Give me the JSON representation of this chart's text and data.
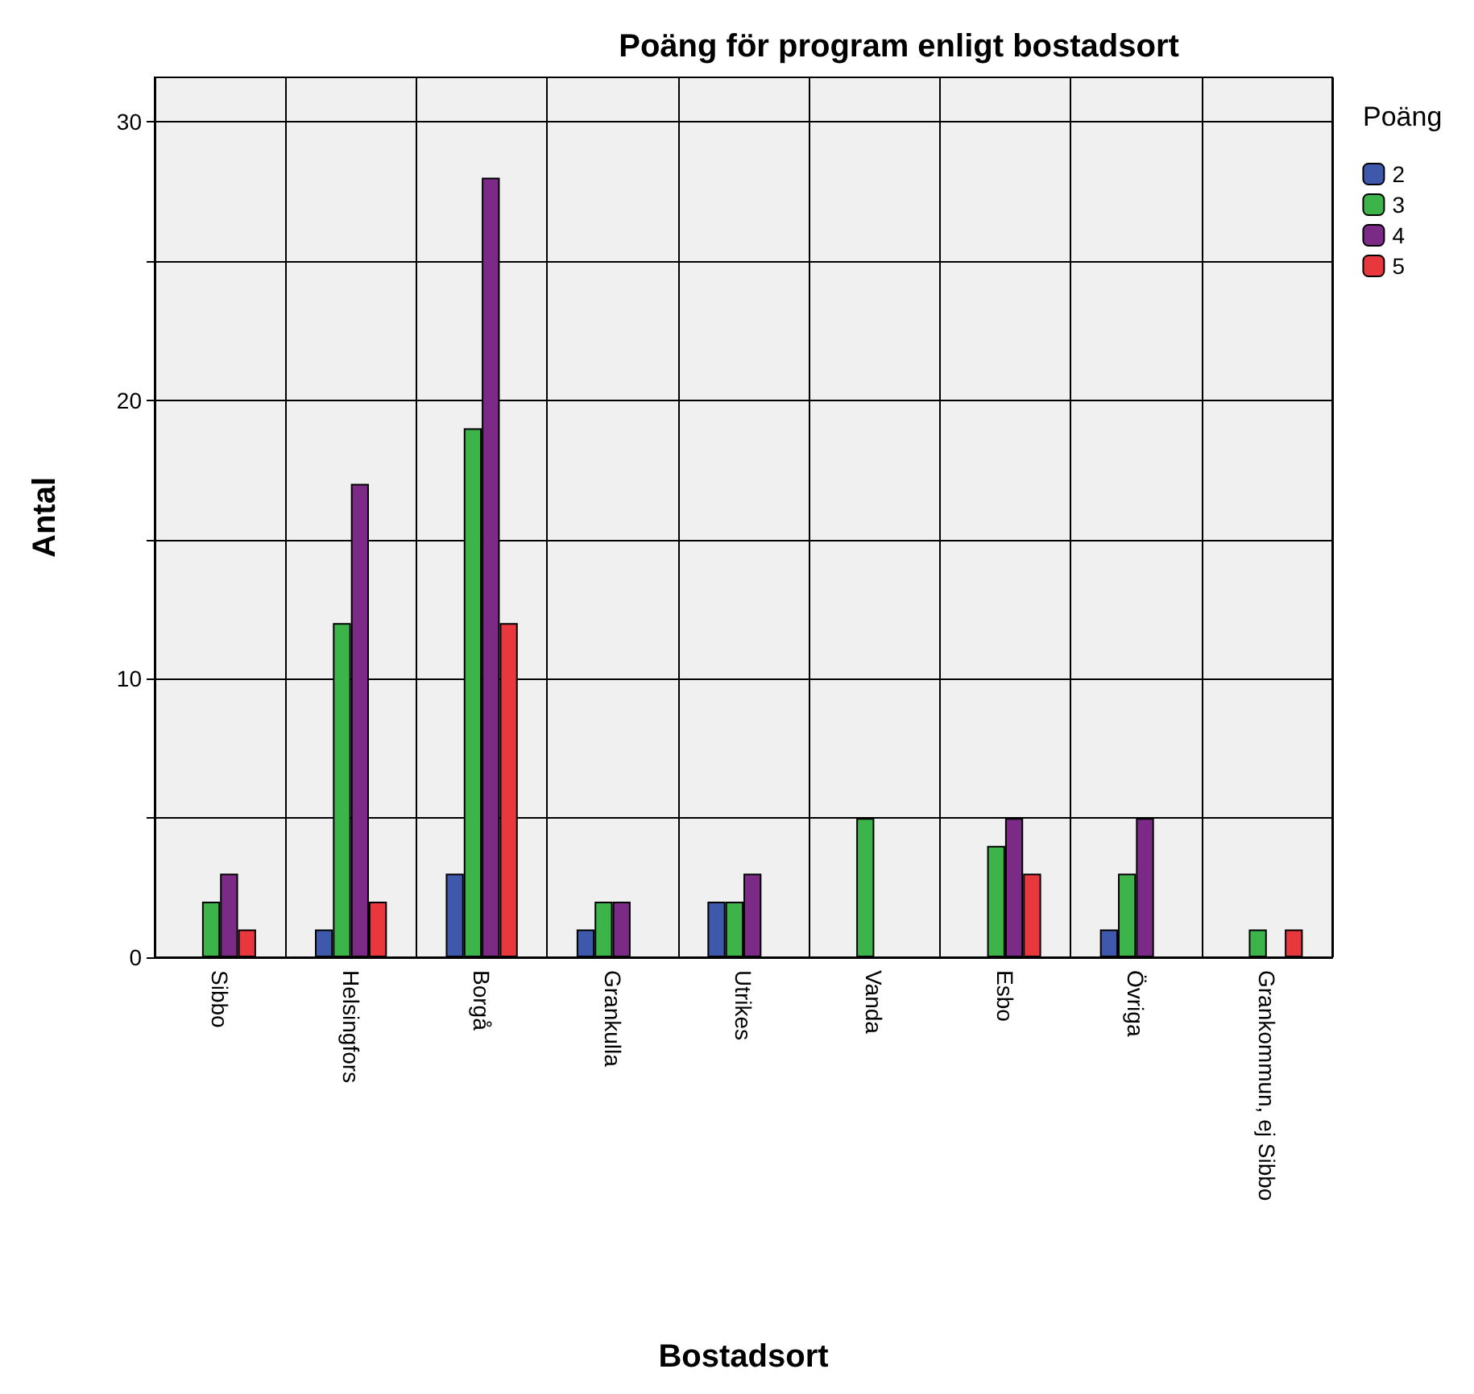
{
  "chart_data": {
    "type": "bar",
    "title": "Poäng för program enligt bostadsort",
    "xlabel": "Bostadsort",
    "ylabel": "Antal",
    "legend_title": "Poäng",
    "categories": [
      "Sibbo",
      "Helsingfors",
      "Borgå",
      "Grankulla",
      "Utrikes",
      "Vanda",
      "Esbo",
      "Övriga",
      "Grankommun, ej Sibbo"
    ],
    "series": [
      {
        "name": "2",
        "color": "#3e58ac",
        "values": [
          null,
          1,
          3,
          1,
          2,
          null,
          null,
          1,
          null
        ]
      },
      {
        "name": "3",
        "color": "#3cb44a",
        "values": [
          2,
          12,
          19,
          2,
          2,
          5,
          4,
          3,
          1
        ]
      },
      {
        "name": "4",
        "color": "#7b2a85",
        "values": [
          3,
          17,
          28,
          2,
          3,
          null,
          5,
          5,
          null
        ]
      },
      {
        "name": "5",
        "color": "#e8383d",
        "values": [
          1,
          2,
          12,
          null,
          null,
          null,
          3,
          null,
          1
        ]
      }
    ],
    "ylim": [
      0,
      31.6
    ],
    "yticks": [
      0,
      {
        "value": 5,
        "label": null
      },
      10,
      {
        "value": 15,
        "label": null
      },
      20,
      {
        "value": 25,
        "label": null
      },
      30
    ],
    "grid": true,
    "legend": "top right"
  }
}
